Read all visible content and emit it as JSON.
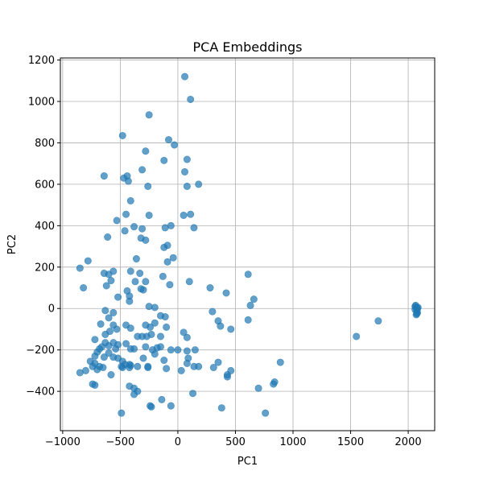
{
  "chart_data": {
    "type": "scatter",
    "title": "PCA Embeddings",
    "xlabel": "PC1",
    "ylabel": "PC2",
    "xlim": [
      -1020,
      2230
    ],
    "ylim": [
      -590,
      1210
    ],
    "xticks": [
      -1000,
      -500,
      0,
      500,
      1000,
      1500,
      2000
    ],
    "yticks": [
      -400,
      -200,
      0,
      200,
      400,
      600,
      800,
      1000,
      1200
    ],
    "grid": true,
    "legend": "none",
    "marker_color": "#1f77b4",
    "marker_alpha": 0.7,
    "points": [
      [
        60,
        1120
      ],
      [
        110,
        1010
      ],
      [
        -250,
        935
      ],
      [
        -480,
        835
      ],
      [
        -80,
        815
      ],
      [
        -30,
        790
      ],
      [
        -280,
        760
      ],
      [
        80,
        720
      ],
      [
        -120,
        715
      ],
      [
        -310,
        670
      ],
      [
        60,
        660
      ],
      [
        -640,
        640
      ],
      [
        -470,
        630
      ],
      [
        -440,
        640
      ],
      [
        -430,
        615
      ],
      [
        -260,
        590
      ],
      [
        80,
        590
      ],
      [
        180,
        600
      ],
      [
        -410,
        520
      ],
      [
        -450,
        455
      ],
      [
        -250,
        450
      ],
      [
        50,
        450
      ],
      [
        110,
        455
      ],
      [
        -530,
        425
      ],
      [
        -380,
        395
      ],
      [
        -310,
        385
      ],
      [
        -110,
        390
      ],
      [
        -60,
        400
      ],
      [
        140,
        390
      ],
      [
        -460,
        375
      ],
      [
        -610,
        345
      ],
      [
        -320,
        340
      ],
      [
        -280,
        330
      ],
      [
        -90,
        305
      ],
      [
        -120,
        295
      ],
      [
        -40,
        245
      ],
      [
        -360,
        240
      ],
      [
        -90,
        225
      ],
      [
        -780,
        230
      ],
      [
        -850,
        195
      ],
      [
        -640,
        170
      ],
      [
        -600,
        165
      ],
      [
        -560,
        180
      ],
      [
        -330,
        170
      ],
      [
        -410,
        180
      ],
      [
        -130,
        155
      ],
      [
        610,
        165
      ],
      [
        -580,
        135
      ],
      [
        -370,
        130
      ],
      [
        -280,
        130
      ],
      [
        -820,
        100
      ],
      [
        -620,
        110
      ],
      [
        -70,
        115
      ],
      [
        100,
        130
      ],
      [
        -320,
        95
      ],
      [
        -300,
        90
      ],
      [
        280,
        100
      ],
      [
        420,
        75
      ],
      [
        -520,
        55
      ],
      [
        -420,
        60
      ],
      [
        -440,
        85
      ],
      [
        -420,
        35
      ],
      [
        660,
        45
      ],
      [
        630,
        15
      ],
      [
        -250,
        10
      ],
      [
        -200,
        5
      ],
      [
        -630,
        -10
      ],
      [
        -560,
        -20
      ],
      [
        -150,
        -35
      ],
      [
        -110,
        -40
      ],
      [
        -600,
        -45
      ],
      [
        300,
        -15
      ],
      [
        -670,
        -75
      ],
      [
        -560,
        -80
      ],
      [
        -450,
        -80
      ],
      [
        350,
        -60
      ],
      [
        370,
        -85
      ],
      [
        -200,
        -70
      ],
      [
        460,
        -100
      ],
      [
        610,
        -55
      ],
      [
        -590,
        -110
      ],
      [
        -530,
        -100
      ],
      [
        -410,
        -95
      ],
      [
        -280,
        -80
      ],
      [
        -240,
        -90
      ],
      [
        -100,
        -90
      ],
      [
        -720,
        -150
      ],
      [
        -630,
        -125
      ],
      [
        -350,
        -135
      ],
      [
        -310,
        -135
      ],
      [
        -270,
        -135
      ],
      [
        -230,
        -125
      ],
      [
        -150,
        -135
      ],
      [
        50,
        -115
      ],
      [
        80,
        -140
      ],
      [
        -630,
        -165
      ],
      [
        -600,
        -180
      ],
      [
        -560,
        -165
      ],
      [
        -660,
        -185
      ],
      [
        -680,
        -195
      ],
      [
        -700,
        -210
      ],
      [
        -520,
        -175
      ],
      [
        -450,
        -170
      ],
      [
        -380,
        -195
      ],
      [
        -410,
        -195
      ],
      [
        -280,
        -185
      ],
      [
        -220,
        -200
      ],
      [
        -180,
        -190
      ],
      [
        -150,
        -185
      ],
      [
        -60,
        -200
      ],
      [
        0,
        -200
      ],
      [
        80,
        -205
      ],
      [
        150,
        -200
      ],
      [
        -540,
        -195
      ],
      [
        -600,
        -215
      ],
      [
        -720,
        -230
      ],
      [
        -640,
        -235
      ],
      [
        -560,
        -235
      ],
      [
        -520,
        -240
      ],
      [
        -480,
        -255
      ],
      [
        -460,
        -270
      ],
      [
        -420,
        -270
      ],
      [
        -410,
        -275
      ],
      [
        -490,
        -280
      ],
      [
        -480,
        -285
      ],
      [
        -420,
        -285
      ],
      [
        -260,
        -280
      ],
      [
        -260,
        -285
      ],
      [
        -760,
        -255
      ],
      [
        -720,
        -265
      ],
      [
        -680,
        -280
      ],
      [
        -650,
        -285
      ],
      [
        -700,
        -295
      ],
      [
        -740,
        -280
      ],
      [
        -800,
        -300
      ],
      [
        -850,
        -310
      ],
      [
        -580,
        -320
      ],
      [
        -350,
        -280
      ],
      [
        -200,
        -220
      ],
      [
        -300,
        -240
      ],
      [
        -120,
        -250
      ],
      [
        90,
        -240
      ],
      [
        80,
        -265
      ],
      [
        140,
        -280
      ],
      [
        180,
        -280
      ],
      [
        310,
        -285
      ],
      [
        350,
        -260
      ],
      [
        460,
        -300
      ],
      [
        430,
        -320
      ],
      [
        430,
        -330
      ],
      [
        -100,
        -290
      ],
      [
        30,
        -300
      ],
      [
        -740,
        -365
      ],
      [
        -720,
        -370
      ],
      [
        -420,
        -375
      ],
      [
        -380,
        -385
      ],
      [
        -350,
        -400
      ],
      [
        -380,
        -415
      ],
      [
        -140,
        -440
      ],
      [
        -240,
        -470
      ],
      [
        -230,
        -475
      ],
      [
        -60,
        -470
      ],
      [
        130,
        -410
      ],
      [
        380,
        -480
      ],
      [
        700,
        -385
      ],
      [
        840,
        -355
      ],
      [
        830,
        -365
      ],
      [
        890,
        -260
      ],
      [
        -490,
        -505
      ],
      [
        760,
        -505
      ],
      [
        1550,
        -135
      ],
      [
        1740,
        -60
      ],
      [
        2060,
        10
      ],
      [
        2070,
        5
      ],
      [
        2080,
        0
      ],
      [
        2075,
        -10
      ],
      [
        2080,
        -20
      ],
      [
        2070,
        -30
      ],
      [
        2060,
        -5
      ],
      [
        2065,
        15
      ],
      [
        2085,
        5
      ],
      [
        2075,
        -25
      ]
    ]
  }
}
